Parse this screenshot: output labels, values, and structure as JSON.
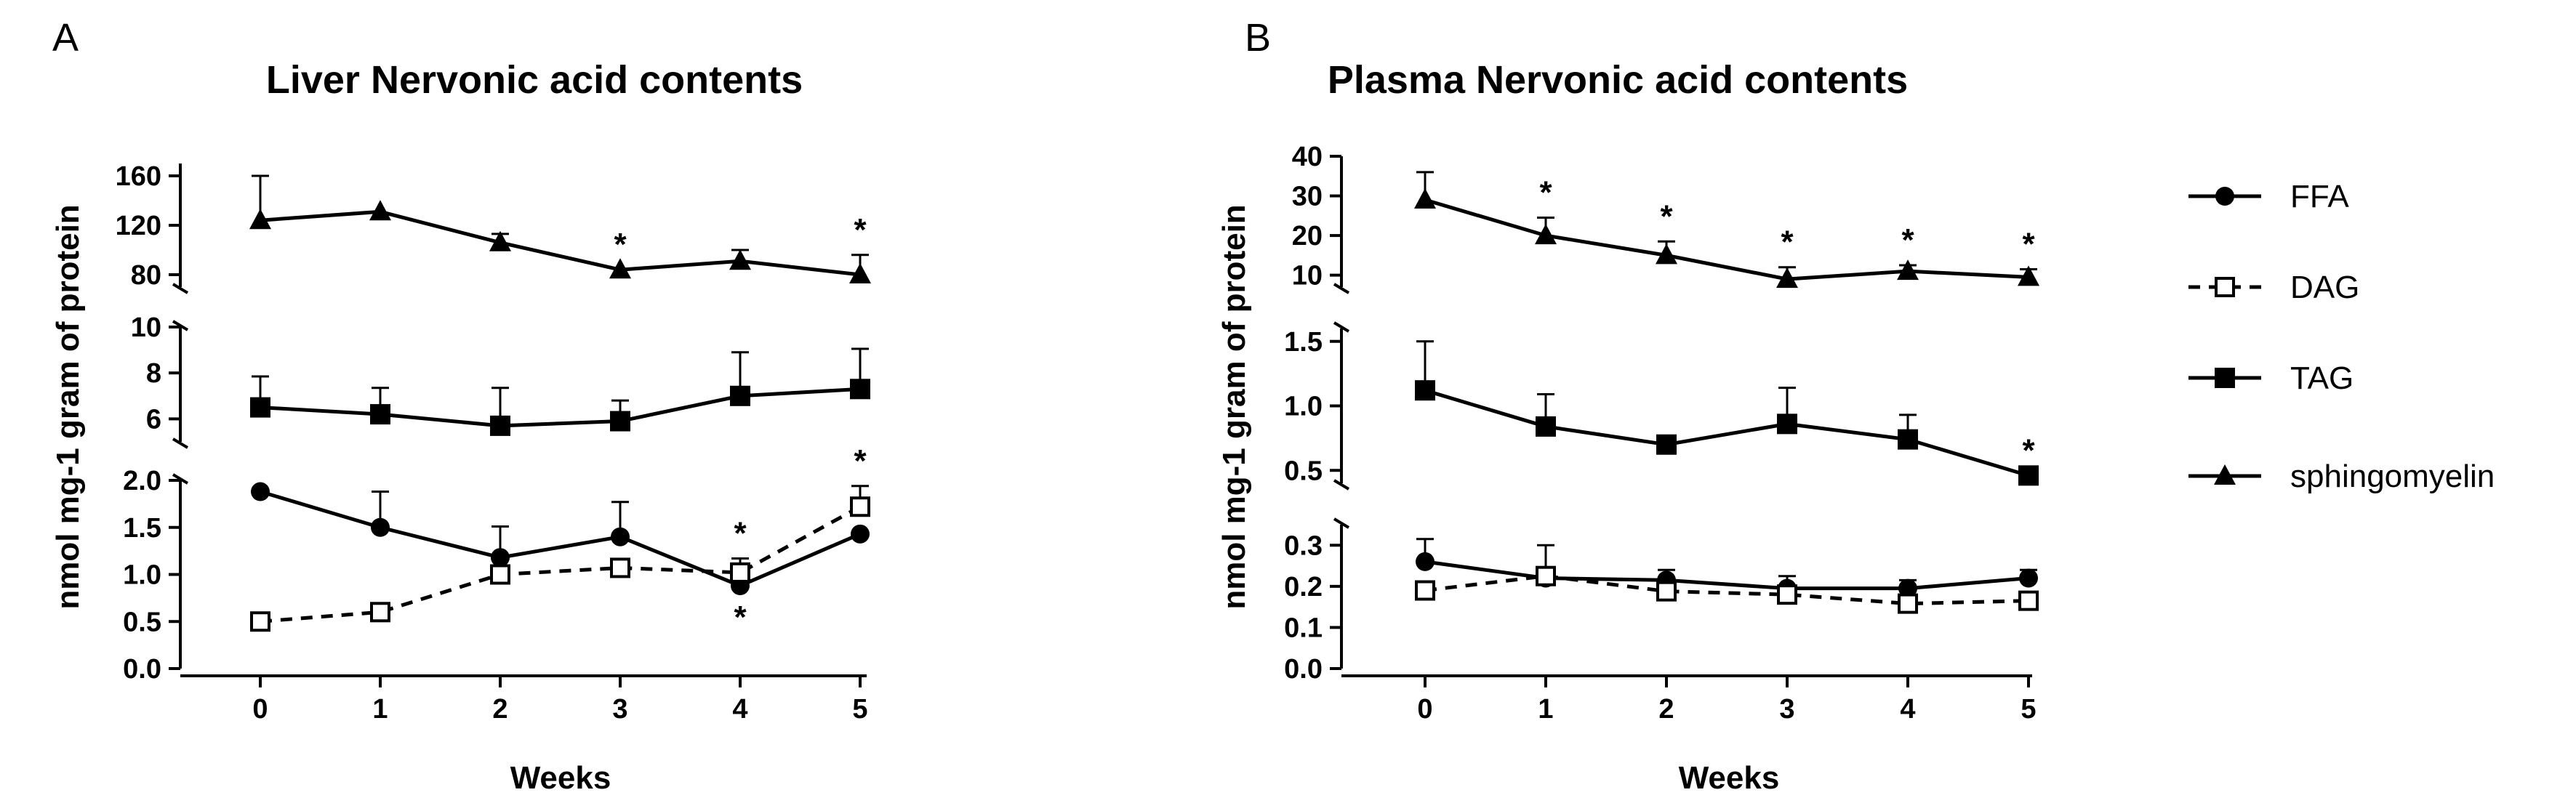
{
  "figure": {
    "panels": [
      {
        "letter": "A",
        "chart_data": {
          "type": "line",
          "title": "Liver Nervonic acid contents",
          "xlabel": "Weeks",
          "ylabel": "nmol mg-1 gram of protein",
          "x": [
            0,
            1,
            2,
            3,
            4,
            5
          ],
          "segments": [
            {
              "name": "upper",
              "ylim": [
                70,
                170
              ],
              "ticks": [
                80,
                120,
                160
              ]
            },
            {
              "name": "middle",
              "ylim": [
                5,
                10
              ],
              "ticks": [
                6,
                8,
                10
              ]
            },
            {
              "name": "lower",
              "ylim": [
                0,
                2.0
              ],
              "ticks": [
                0.0,
                0.5,
                1.0,
                1.5,
                2.0
              ]
            }
          ],
          "series": [
            {
              "name": "sphingomyelin",
              "segment": "upper",
              "marker": "triangle",
              "dashed": false,
              "values": [
                124,
                131,
                106,
                84,
                91,
                80
              ],
              "errors": [
                36,
                0,
                7,
                0,
                9,
                16
              ],
              "significant": [
                false,
                false,
                false,
                true,
                false,
                true
              ],
              "sig_pos": "above"
            },
            {
              "name": "TAG",
              "segment": "middle",
              "marker": "square",
              "dashed": false,
              "values": [
                6.5,
                6.2,
                5.7,
                5.9,
                7.0,
                7.3
              ],
              "errors": [
                1.35,
                1.15,
                1.65,
                0.9,
                1.9,
                1.75
              ],
              "significant": [
                false,
                false,
                false,
                false,
                false,
                false
              ],
              "sig_pos": "above"
            },
            {
              "name": "FFA",
              "segment": "lower",
              "marker": "circle",
              "dashed": false,
              "values": [
                1.88,
                1.5,
                1.18,
                1.4,
                0.88,
                1.43
              ],
              "errors": [
                0,
                0.38,
                0.33,
                0.37,
                0.22,
                0
              ],
              "significant": [
                false,
                false,
                false,
                false,
                true,
                false
              ],
              "sig_pos": "below"
            },
            {
              "name": "DAG",
              "segment": "lower",
              "marker": "open-square",
              "dashed": true,
              "values": [
                0.5,
                0.6,
                1.0,
                1.07,
                1.02,
                1.72
              ],
              "errors": [
                0,
                0,
                0,
                0,
                0.15,
                0.22
              ],
              "significant": [
                false,
                false,
                false,
                false,
                true,
                true
              ],
              "sig_pos": "above"
            }
          ],
          "significance_symbol": "*"
        }
      },
      {
        "letter": "B",
        "chart_data": {
          "type": "line",
          "title": "Plasma Nervonic acid contents",
          "xlabel": "Weeks",
          "ylabel": "nmol mg-1 gram of protein",
          "x": [
            0,
            1,
            2,
            3,
            4,
            5
          ],
          "segments": [
            {
              "name": "upper",
              "ylim": [
                7,
                40
              ],
              "ticks": [
                10,
                20,
                30,
                40
              ]
            },
            {
              "name": "middle",
              "ylim": [
                0.4,
                1.6
              ],
              "ticks": [
                0.5,
                1.0,
                1.5
              ]
            },
            {
              "name": "lower",
              "ylim": [
                0,
                0.35
              ],
              "ticks": [
                0.0,
                0.1,
                0.2,
                0.3
              ]
            }
          ],
          "series": [
            {
              "name": "sphingomyelin",
              "segment": "upper",
              "marker": "triangle",
              "dashed": false,
              "values": [
                29,
                20,
                15,
                9,
                11,
                9.5
              ],
              "errors": [
                7,
                4.5,
                3.5,
                3,
                1.5,
                2
              ],
              "significant": [
                false,
                true,
                true,
                true,
                true,
                true
              ],
              "sig_pos": "above"
            },
            {
              "name": "TAG",
              "segment": "middle",
              "marker": "square",
              "dashed": false,
              "values": [
                1.12,
                0.84,
                0.7,
                0.86,
                0.74,
                0.46
              ],
              "errors": [
                0.38,
                0.25,
                0,
                0.28,
                0.19,
                0
              ],
              "significant": [
                false,
                false,
                false,
                false,
                false,
                true
              ],
              "sig_pos": "above"
            },
            {
              "name": "FFA",
              "segment": "lower",
              "marker": "circle",
              "dashed": false,
              "values": [
                0.26,
                0.22,
                0.215,
                0.195,
                0.195,
                0.22
              ],
              "errors": [
                0.055,
                0.08,
                0.025,
                0.03,
                0.02,
                0.02
              ],
              "significant": [
                false,
                false,
                false,
                false,
                false,
                false
              ],
              "sig_pos": "above"
            },
            {
              "name": "DAG",
              "segment": "lower",
              "marker": "open-square",
              "dashed": true,
              "values": [
                0.19,
                0.225,
                0.188,
                0.18,
                0.158,
                0.165
              ],
              "errors": [
                0,
                0,
                0,
                0,
                0,
                0
              ],
              "significant": [
                false,
                false,
                false,
                false,
                false,
                false
              ],
              "sig_pos": "above"
            }
          ],
          "significance_symbol": "*"
        }
      }
    ],
    "legend": [
      {
        "name": "FFA",
        "marker": "circle",
        "dashed": false
      },
      {
        "name": "DAG",
        "marker": "open-square",
        "dashed": true
      },
      {
        "name": "TAG",
        "marker": "square",
        "dashed": false
      },
      {
        "name": "sphingomyelin",
        "marker": "triangle",
        "dashed": false
      }
    ]
  }
}
